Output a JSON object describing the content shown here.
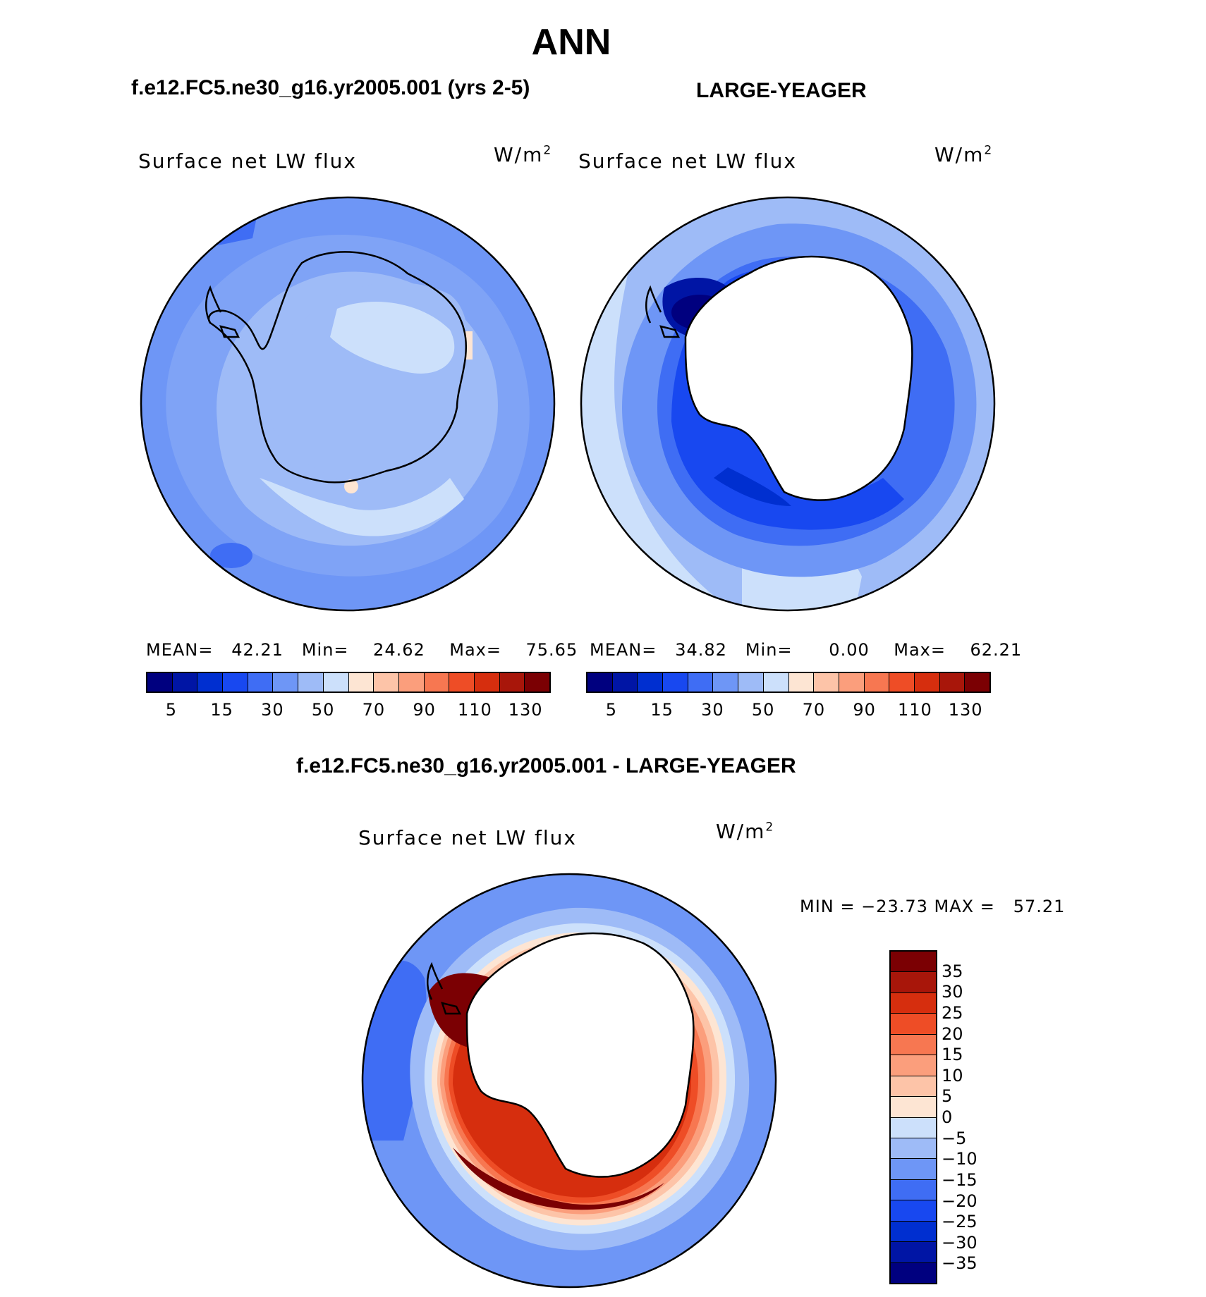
{
  "title": "ANN",
  "left_panel": {
    "case_title": "f.e12.FC5.ne30_g16.yr2005.001 (yrs 2-5)",
    "variable": "Surface net LW flux",
    "units_base": "W/m",
    "units_exp": "2",
    "stats": "MEAN=   42.21   Min=    24.62    Max=    75.65"
  },
  "right_panel": {
    "case_title": "LARGE-YEAGER",
    "variable": "Surface net LW flux",
    "units_base": "W/m",
    "units_exp": "2",
    "stats": "MEAN=   34.82   Min=      0.00    Max=    62.21"
  },
  "diff_panel": {
    "case_title": "f.e12.FC5.ne30_g16.yr2005.001 - LARGE-YEAGER",
    "variable": "Surface net LW flux",
    "units_base": "W/m",
    "units_exp": "2",
    "stats": "MIN = −23.73 MAX =   57.21"
  },
  "abs_colorbar": {
    "colors": [
      "#00007f",
      "#0015a5",
      "#002fd0",
      "#1848f0",
      "#3f6df4",
      "#6e96f6",
      "#9ebbf7",
      "#cce0fb",
      "#fde5d3",
      "#fdc4a8",
      "#fb9e7c",
      "#f77751",
      "#ee4d26",
      "#d62e0e",
      "#a8160a",
      "#7b0003"
    ],
    "tick_labels": [
      "5",
      "15",
      "30",
      "50",
      "70",
      "90",
      "110",
      "130"
    ]
  },
  "diff_colorbar": {
    "colors": [
      "#7b0003",
      "#a8160a",
      "#d62e0e",
      "#ee4d26",
      "#f77751",
      "#fb9e7c",
      "#fdc4a8",
      "#fde5d3",
      "#cce0fb",
      "#9ebbf7",
      "#6e96f6",
      "#3f6df4",
      "#1848f0",
      "#002fd0",
      "#0015a5",
      "#00007f"
    ],
    "tick_labels": [
      "35",
      "30",
      "25",
      "20",
      "15",
      "10",
      "5",
      "0",
      "−5",
      "−10",
      "−15",
      "−20",
      "−25",
      "−30",
      "−35"
    ]
  }
}
